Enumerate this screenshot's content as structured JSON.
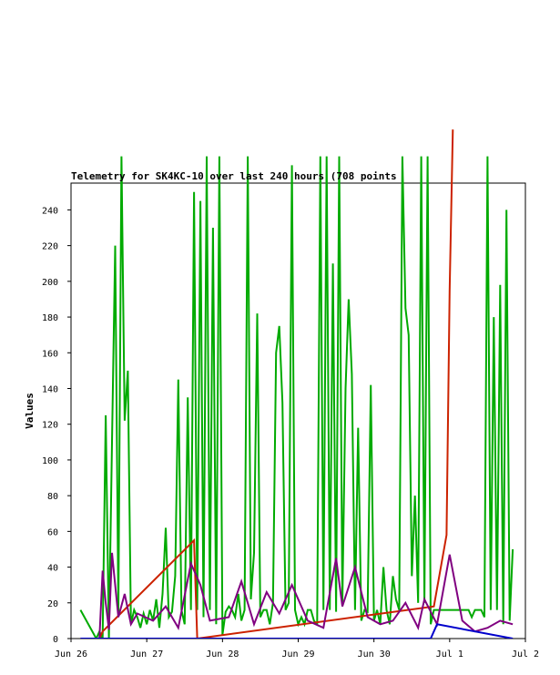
{
  "chart_data": {
    "type": "line",
    "title": "Telemetry for SK4KC-10 over last 240 hours (708 points",
    "xlabel": "",
    "ylabel": "Values",
    "ylim": [
      0,
      255
    ],
    "yticks": [
      0,
      20,
      40,
      60,
      80,
      100,
      120,
      140,
      160,
      180,
      200,
      220,
      240
    ],
    "xlim": [
      "2024-06-26T00:00",
      "2024-07-02T00:00"
    ],
    "xticks": [
      {
        "t": "2024-06-26T00:00",
        "label": "Jun 26"
      },
      {
        "t": "2024-06-27T00:00",
        "label": "Jun 27"
      },
      {
        "t": "2024-06-28T00:00",
        "label": "Jun 28"
      },
      {
        "t": "2024-06-29T00:00",
        "label": "Jun 29"
      },
      {
        "t": "2024-06-30T00:00",
        "label": "Jun 30"
      },
      {
        "t": "2024-07-01T00:00",
        "label": "Jul 1"
      },
      {
        "t": "2024-07-02T00:00",
        "label": "Jul 2"
      }
    ],
    "grid": false,
    "legend": "none",
    "series": [
      {
        "color": "#00aa00",
        "x": [
          "2024-06-26T03:00",
          "2024-06-26T08:00",
          "2024-06-26T09:00",
          "2024-06-26T10:00",
          "2024-06-26T11:00",
          "2024-06-26T12:00",
          "2024-06-26T13:00",
          "2024-06-26T14:00",
          "2024-06-26T15:00",
          "2024-06-26T16:00",
          "2024-06-26T17:00",
          "2024-06-26T18:00",
          "2024-06-26T19:00",
          "2024-06-26T20:00",
          "2024-06-26T21:00",
          "2024-06-26T22:00",
          "2024-06-26T23:00",
          "2024-06-27T00:00",
          "2024-06-27T01:00",
          "2024-06-27T02:00",
          "2024-06-27T03:00",
          "2024-06-27T04:00",
          "2024-06-27T05:00",
          "2024-06-27T06:00",
          "2024-06-27T07:00",
          "2024-06-27T08:00",
          "2024-06-27T09:00",
          "2024-06-27T10:00",
          "2024-06-27T11:00",
          "2024-06-27T12:00",
          "2024-06-27T13:00",
          "2024-06-27T14:00",
          "2024-06-27T15:00",
          "2024-06-27T16:00",
          "2024-06-27T17:00",
          "2024-06-27T18:00",
          "2024-06-27T19:00",
          "2024-06-27T20:00",
          "2024-06-27T21:00",
          "2024-06-27T22:00",
          "2024-06-27T23:00",
          "2024-06-28T00:00",
          "2024-06-28T01:00",
          "2024-06-28T02:00",
          "2024-06-28T03:00",
          "2024-06-28T04:00",
          "2024-06-28T05:00",
          "2024-06-28T06:00",
          "2024-06-28T07:00",
          "2024-06-28T08:00",
          "2024-06-28T09:00",
          "2024-06-28T10:00",
          "2024-06-28T11:00",
          "2024-06-28T12:00",
          "2024-06-28T13:00",
          "2024-06-28T14:00",
          "2024-06-28T15:00",
          "2024-06-28T16:00",
          "2024-06-28T17:00",
          "2024-06-28T18:00",
          "2024-06-28T19:00",
          "2024-06-28T20:00",
          "2024-06-28T21:00",
          "2024-06-28T22:00",
          "2024-06-28T23:00",
          "2024-06-29T00:00",
          "2024-06-29T01:00",
          "2024-06-29T02:00",
          "2024-06-29T03:00",
          "2024-06-29T04:00",
          "2024-06-29T05:00",
          "2024-06-29T06:00",
          "2024-06-29T07:00",
          "2024-06-29T08:00",
          "2024-06-29T09:00",
          "2024-06-29T10:00",
          "2024-06-29T11:00",
          "2024-06-29T12:00",
          "2024-06-29T13:00",
          "2024-06-29T14:00",
          "2024-06-29T15:00",
          "2024-06-29T16:00",
          "2024-06-29T17:00",
          "2024-06-29T18:00",
          "2024-06-29T19:00",
          "2024-06-29T20:00",
          "2024-06-29T21:00",
          "2024-06-29T22:00",
          "2024-06-29T23:00",
          "2024-06-30T00:00",
          "2024-06-30T01:00",
          "2024-06-30T02:00",
          "2024-06-30T03:00",
          "2024-06-30T04:00",
          "2024-06-30T05:00",
          "2024-06-30T06:00",
          "2024-06-30T07:00",
          "2024-06-30T08:00",
          "2024-06-30T09:00",
          "2024-06-30T10:00",
          "2024-06-30T11:00",
          "2024-06-30T12:00",
          "2024-06-30T13:00",
          "2024-06-30T14:00",
          "2024-06-30T15:00",
          "2024-06-30T16:00",
          "2024-06-30T17:00",
          "2024-06-30T18:00",
          "2024-06-30T19:00",
          "2024-06-30T20:00",
          "2024-06-30T21:00",
          "2024-06-30T22:00",
          "2024-06-30T23:00",
          "2024-07-01T00:00",
          "2024-07-01T01:00",
          "2024-07-01T02:00",
          "2024-07-01T03:00",
          "2024-07-01T04:00",
          "2024-07-01T05:00",
          "2024-07-01T06:00",
          "2024-07-01T07:00",
          "2024-07-01T08:00",
          "2024-07-01T09:00",
          "2024-07-01T10:00",
          "2024-07-01T11:00",
          "2024-07-01T12:00",
          "2024-07-01T13:00",
          "2024-07-01T14:00",
          "2024-07-01T15:00",
          "2024-07-01T16:00",
          "2024-07-01T17:00",
          "2024-07-01T18:00",
          "2024-07-01T19:00",
          "2024-07-01T20:00"
        ],
        "values": [
          16,
          0,
          4,
          0,
          125,
          0,
          110,
          220,
          15,
          270,
          122,
          150,
          8,
          16,
          12,
          6,
          14,
          8,
          16,
          10,
          22,
          6,
          25,
          62,
          12,
          15,
          35,
          145,
          16,
          8,
          135,
          16,
          250,
          16,
          245,
          12,
          270,
          16,
          230,
          8,
          270,
          2,
          15,
          18,
          16,
          12,
          25,
          10,
          16,
          270,
          22,
          48,
          182,
          12,
          16,
          16,
          8,
          20,
          160,
          175,
          132,
          16,
          20,
          265,
          16,
          8,
          12,
          8,
          16,
          16,
          10,
          8,
          270,
          16,
          270,
          16,
          210,
          15,
          270,
          20,
          140,
          190,
          148,
          16,
          118,
          10,
          16,
          15,
          142,
          10,
          16,
          8,
          40,
          16,
          8,
          35,
          22,
          16,
          270,
          185,
          170,
          35,
          80,
          20,
          270,
          20,
          270,
          8,
          16,
          16,
          16,
          16,
          16,
          16,
          16,
          16,
          16,
          16,
          16,
          16,
          12,
          16,
          16,
          16,
          12,
          270,
          16,
          180,
          16,
          198,
          8,
          240,
          10,
          50
        ],
        "note_peak": 0
      },
      {
        "color": "#cc2200",
        "x": [
          "2024-06-26T03:00",
          "2024-06-26T09:00",
          "2024-06-26T10:00",
          "2024-06-27T15:00",
          "2024-06-27T16:00",
          "2024-06-30T19:00",
          "2024-06-30T23:00",
          "2024-07-01T00:00",
          "2024-07-01T01:00"
        ],
        "values": [
          0,
          0,
          4,
          55,
          0,
          18,
          58,
          195,
          285
        ]
      },
      {
        "color": "#800080",
        "x": [
          "2024-06-26T03:00",
          "2024-06-26T09:00",
          "2024-06-26T10:00",
          "2024-06-26T11:00",
          "2024-06-26T12:00",
          "2024-06-26T13:00",
          "2024-06-26T14:00",
          "2024-06-26T15:00",
          "2024-06-26T17:00",
          "2024-06-26T19:00",
          "2024-06-26T21:00",
          "2024-06-27T02:00",
          "2024-06-27T06:00",
          "2024-06-27T10:00",
          "2024-06-27T14:00",
          "2024-06-27T17:00",
          "2024-06-27T20:00",
          "2024-06-28T02:00",
          "2024-06-28T06:00",
          "2024-06-28T10:00",
          "2024-06-28T14:00",
          "2024-06-28T18:00",
          "2024-06-28T22:00",
          "2024-06-29T03:00",
          "2024-06-29T08:00",
          "2024-06-29T12:00",
          "2024-06-29T14:00",
          "2024-06-29T18:00",
          "2024-06-29T22:00",
          "2024-06-30T02:00",
          "2024-06-30T06:00",
          "2024-06-30T10:00",
          "2024-06-30T14:00",
          "2024-06-30T16:00",
          "2024-06-30T20:00",
          "2024-07-01T00:00",
          "2024-07-01T04:00",
          "2024-07-01T08:00",
          "2024-07-01T12:00",
          "2024-07-01T16:00",
          "2024-07-01T20:00"
        ],
        "values": [
          0,
          0,
          38,
          20,
          5,
          48,
          30,
          12,
          25,
          8,
          14,
          10,
          18,
          6,
          42,
          30,
          10,
          12,
          32,
          8,
          26,
          14,
          30,
          10,
          6,
          45,
          18,
          40,
          12,
          8,
          10,
          20,
          6,
          22,
          8,
          47,
          10,
          4,
          6,
          10,
          8
        ]
      },
      {
        "color": "#0000cc",
        "x": [
          "2024-06-26T03:00",
          "2024-06-30T18:00",
          "2024-06-30T20:00",
          "2024-07-01T20:00"
        ],
        "values": [
          0,
          0,
          8,
          0
        ]
      }
    ]
  }
}
